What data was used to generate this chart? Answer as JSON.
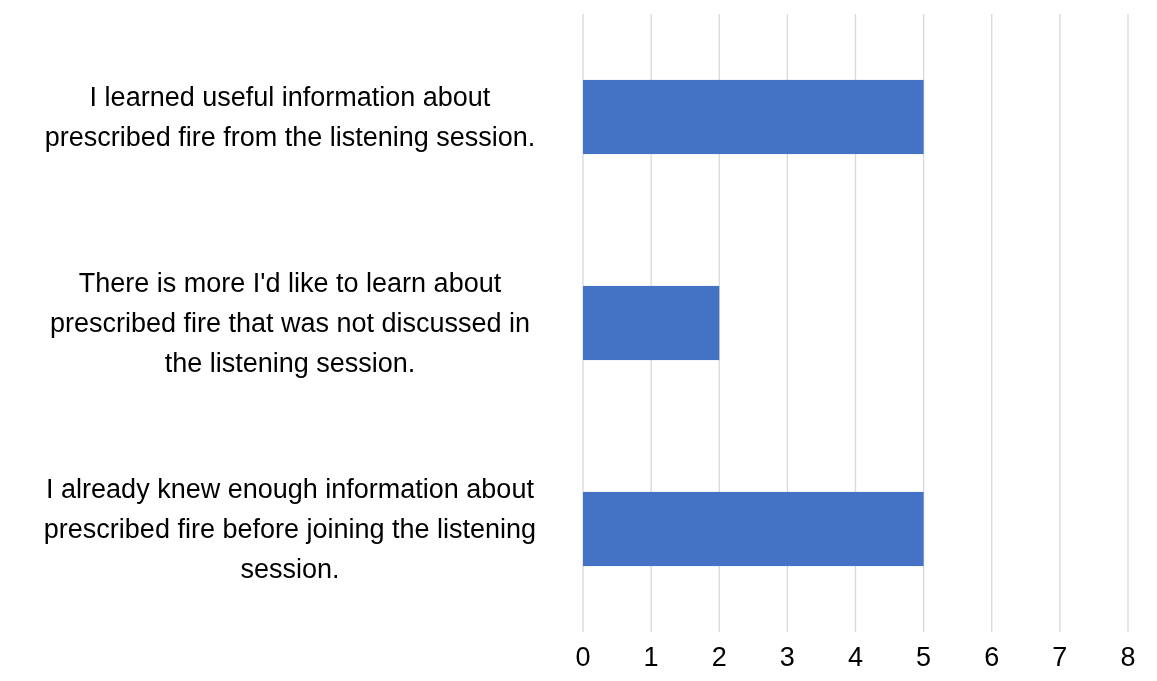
{
  "chart_data": {
    "type": "bar",
    "orientation": "horizontal",
    "categories": [
      "I learned useful information about prescribed fire from the listening session.",
      "There is more I'd like to learn about prescribed fire that was not discussed in the listening session.",
      "I already knew enough information about prescribed fire before joining the listening session."
    ],
    "values": [
      5,
      2,
      5
    ],
    "color": "#4472c4",
    "xlim": [
      0,
      8
    ],
    "xticks": [
      0,
      1,
      2,
      3,
      4,
      5,
      6,
      7,
      8
    ],
    "grid": "x"
  }
}
